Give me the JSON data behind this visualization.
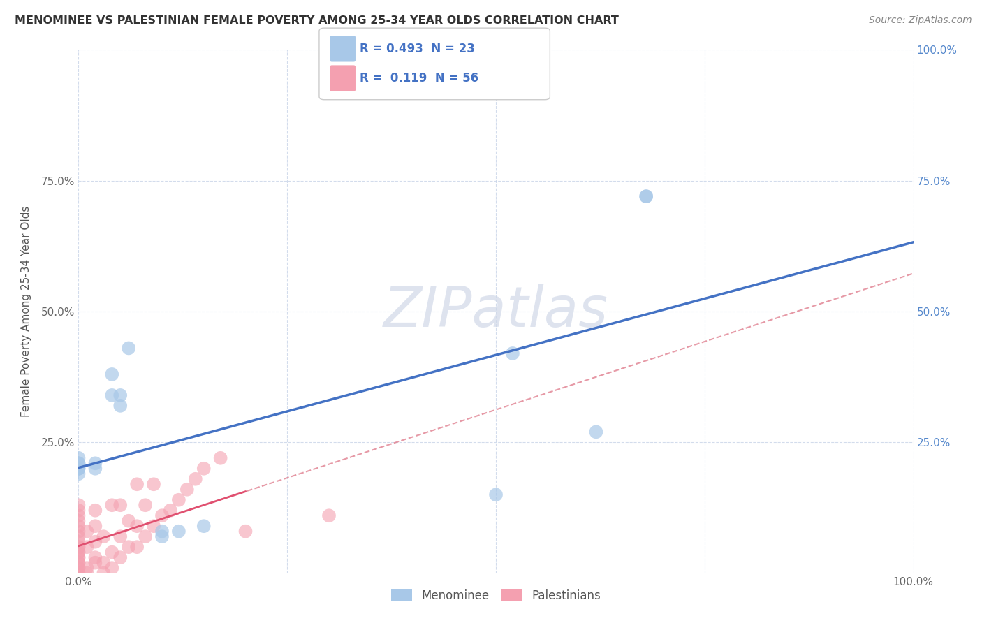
{
  "title": "MENOMINEE VS PALESTINIAN FEMALE POVERTY AMONG 25-34 YEAR OLDS CORRELATION CHART",
  "source": "Source: ZipAtlas.com",
  "ylabel": "Female Poverty Among 25-34 Year Olds",
  "xlim": [
    0,
    1.0
  ],
  "ylim": [
    0,
    1.0
  ],
  "menominee_color": "#a8c8e8",
  "palestinian_color": "#f4a0b0",
  "menominee_R": 0.493,
  "menominee_N": 23,
  "palestinian_R": 0.119,
  "palestinian_N": 56,
  "menominee_line_color": "#4472c4",
  "palestinian_line_color": "#e08090",
  "grid_color": "#c8d4e8",
  "background_color": "#ffffff",
  "menominee_x": [
    0.0,
    0.0,
    0.0,
    0.0,
    0.0,
    0.0,
    0.0,
    0.02,
    0.02,
    0.04,
    0.04,
    0.05,
    0.05,
    0.06,
    0.1,
    0.1,
    0.12,
    0.15,
    0.5,
    0.52,
    0.62,
    0.68,
    0.68
  ],
  "menominee_y": [
    0.2,
    0.22,
    0.2,
    0.21,
    0.19,
    0.2,
    0.21,
    0.2,
    0.21,
    0.38,
    0.34,
    0.34,
    0.32,
    0.43,
    0.07,
    0.08,
    0.08,
    0.09,
    0.15,
    0.42,
    0.27,
    0.72,
    0.72
  ],
  "palestinian_x": [
    0.0,
    0.0,
    0.0,
    0.0,
    0.0,
    0.0,
    0.0,
    0.0,
    0.0,
    0.0,
    0.0,
    0.0,
    0.0,
    0.0,
    0.0,
    0.0,
    0.0,
    0.0,
    0.0,
    0.0,
    0.01,
    0.01,
    0.01,
    0.01,
    0.02,
    0.02,
    0.02,
    0.02,
    0.02,
    0.03,
    0.03,
    0.03,
    0.04,
    0.04,
    0.04,
    0.05,
    0.05,
    0.05,
    0.06,
    0.06,
    0.07,
    0.07,
    0.07,
    0.08,
    0.08,
    0.09,
    0.09,
    0.1,
    0.11,
    0.12,
    0.13,
    0.14,
    0.15,
    0.17,
    0.2,
    0.3
  ],
  "palestinian_y": [
    0.0,
    0.0,
    0.01,
    0.01,
    0.02,
    0.02,
    0.03,
    0.03,
    0.04,
    0.04,
    0.05,
    0.05,
    0.06,
    0.07,
    0.08,
    0.09,
    0.1,
    0.11,
    0.12,
    0.13,
    0.0,
    0.01,
    0.05,
    0.08,
    0.02,
    0.03,
    0.06,
    0.09,
    0.12,
    0.0,
    0.02,
    0.07,
    0.01,
    0.04,
    0.13,
    0.03,
    0.07,
    0.13,
    0.05,
    0.1,
    0.05,
    0.09,
    0.17,
    0.07,
    0.13,
    0.09,
    0.17,
    0.11,
    0.12,
    0.14,
    0.16,
    0.18,
    0.2,
    0.22,
    0.08,
    0.11
  ]
}
